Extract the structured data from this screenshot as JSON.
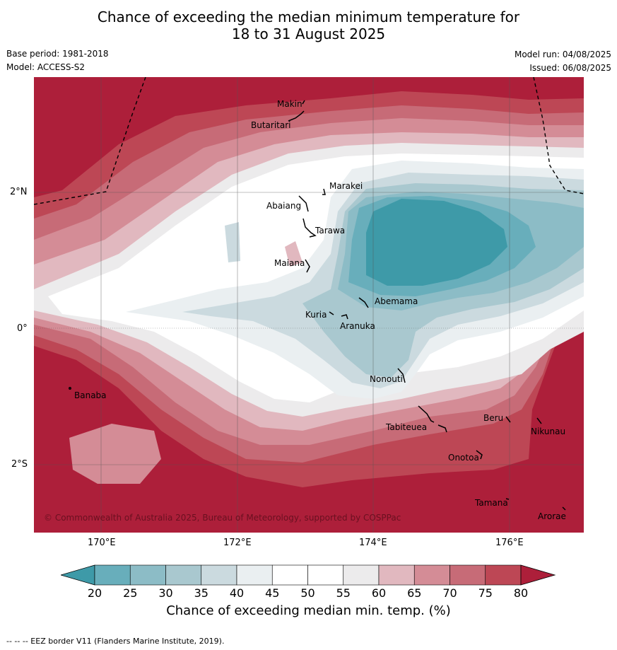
{
  "title_line1": "Chance of exceeding the median minimum temperature for",
  "title_line2": "18 to 31 August 2025",
  "base_period": "Base period: 1981-2018",
  "model": "Model: ACCESS-S2",
  "model_run": "Model run: 04/08/2025",
  "issued": "Issued: 06/08/2025",
  "copyright": "© Commonwealth of Australia 2025, Bureau of Meteorology, supported by COSPPac",
  "lon_labels": [
    "170°E",
    "172°E",
    "174°E",
    "176°E"
  ],
  "lat_labels": [
    "2°N",
    "0°",
    "2°S"
  ],
  "places": [
    "Makin",
    "Butaritari",
    "Marakei",
    "Abaiang",
    "Tarawa",
    "Maiana",
    "Abemama",
    "Kuria",
    "Aranuka",
    "Nonouti",
    "Banaba",
    "Beru",
    "Nikunau",
    "Tabiteuea",
    "Onotoa",
    "Tamana",
    "Arorae"
  ],
  "colorbar": {
    "ticks": [
      "20",
      "25",
      "30",
      "35",
      "40",
      "45",
      "50",
      "55",
      "60",
      "65",
      "70",
      "75",
      "80"
    ],
    "colors": [
      "#3e9aa8",
      "#68aebb",
      "#8cbcc6",
      "#a9c8cf",
      "#cbdadf",
      "#eaeff1",
      "#ffffff",
      "#ffffff",
      "#ecebec",
      "#e1b8bf",
      "#d48c96",
      "#c76b77",
      "#bd4755",
      "#ad1f3a"
    ],
    "label": "Chance of exceeding median min. temp. (%)"
  },
  "footer": "--  --  -- EEZ border V11 (Flanders Marine Institute, 2019)."
}
